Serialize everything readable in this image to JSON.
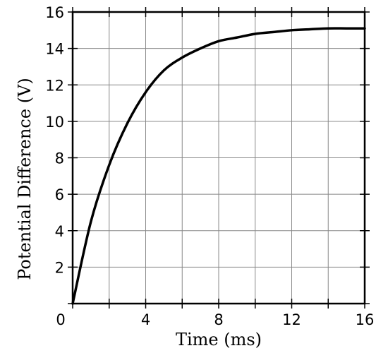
{
  "chart_data": {
    "type": "line",
    "xlabel": "Time (ms)",
    "ylabel": "Potential Difference (V)",
    "xlim": [
      0,
      16
    ],
    "ylim": [
      0,
      16
    ],
    "x_ticks": [
      0,
      2,
      4,
      6,
      8,
      10,
      12,
      14,
      16
    ],
    "y_ticks": [
      0,
      2,
      4,
      6,
      8,
      10,
      12,
      14,
      16
    ],
    "x_tick_labels": [
      {
        "value": 0,
        "label": "0"
      },
      {
        "value": 4,
        "label": "4"
      },
      {
        "value": 8,
        "label": "8"
      },
      {
        "value": 12,
        "label": "12"
      },
      {
        "value": 16,
        "label": "16"
      }
    ],
    "y_tick_labels": [
      {
        "value": 2,
        "label": "2"
      },
      {
        "value": 4,
        "label": "4"
      },
      {
        "value": 6,
        "label": "6"
      },
      {
        "value": 8,
        "label": "8"
      },
      {
        "value": 10,
        "label": "10"
      },
      {
        "value": 12,
        "label": "12"
      },
      {
        "value": 14,
        "label": "14"
      },
      {
        "value": 16,
        "label": "16"
      }
    ],
    "grid": true,
    "line_color": "#000000",
    "series": [
      {
        "x": [
          0,
          1,
          2,
          3,
          4,
          5,
          6,
          7,
          8,
          9,
          10,
          11,
          12,
          13,
          14,
          15,
          16
        ],
        "y": [
          0,
          4.5,
          7.6,
          9.9,
          11.6,
          12.8,
          13.5,
          14.0,
          14.4,
          14.6,
          14.8,
          14.9,
          15.0,
          15.05,
          15.1,
          15.1,
          15.1
        ]
      }
    ]
  }
}
